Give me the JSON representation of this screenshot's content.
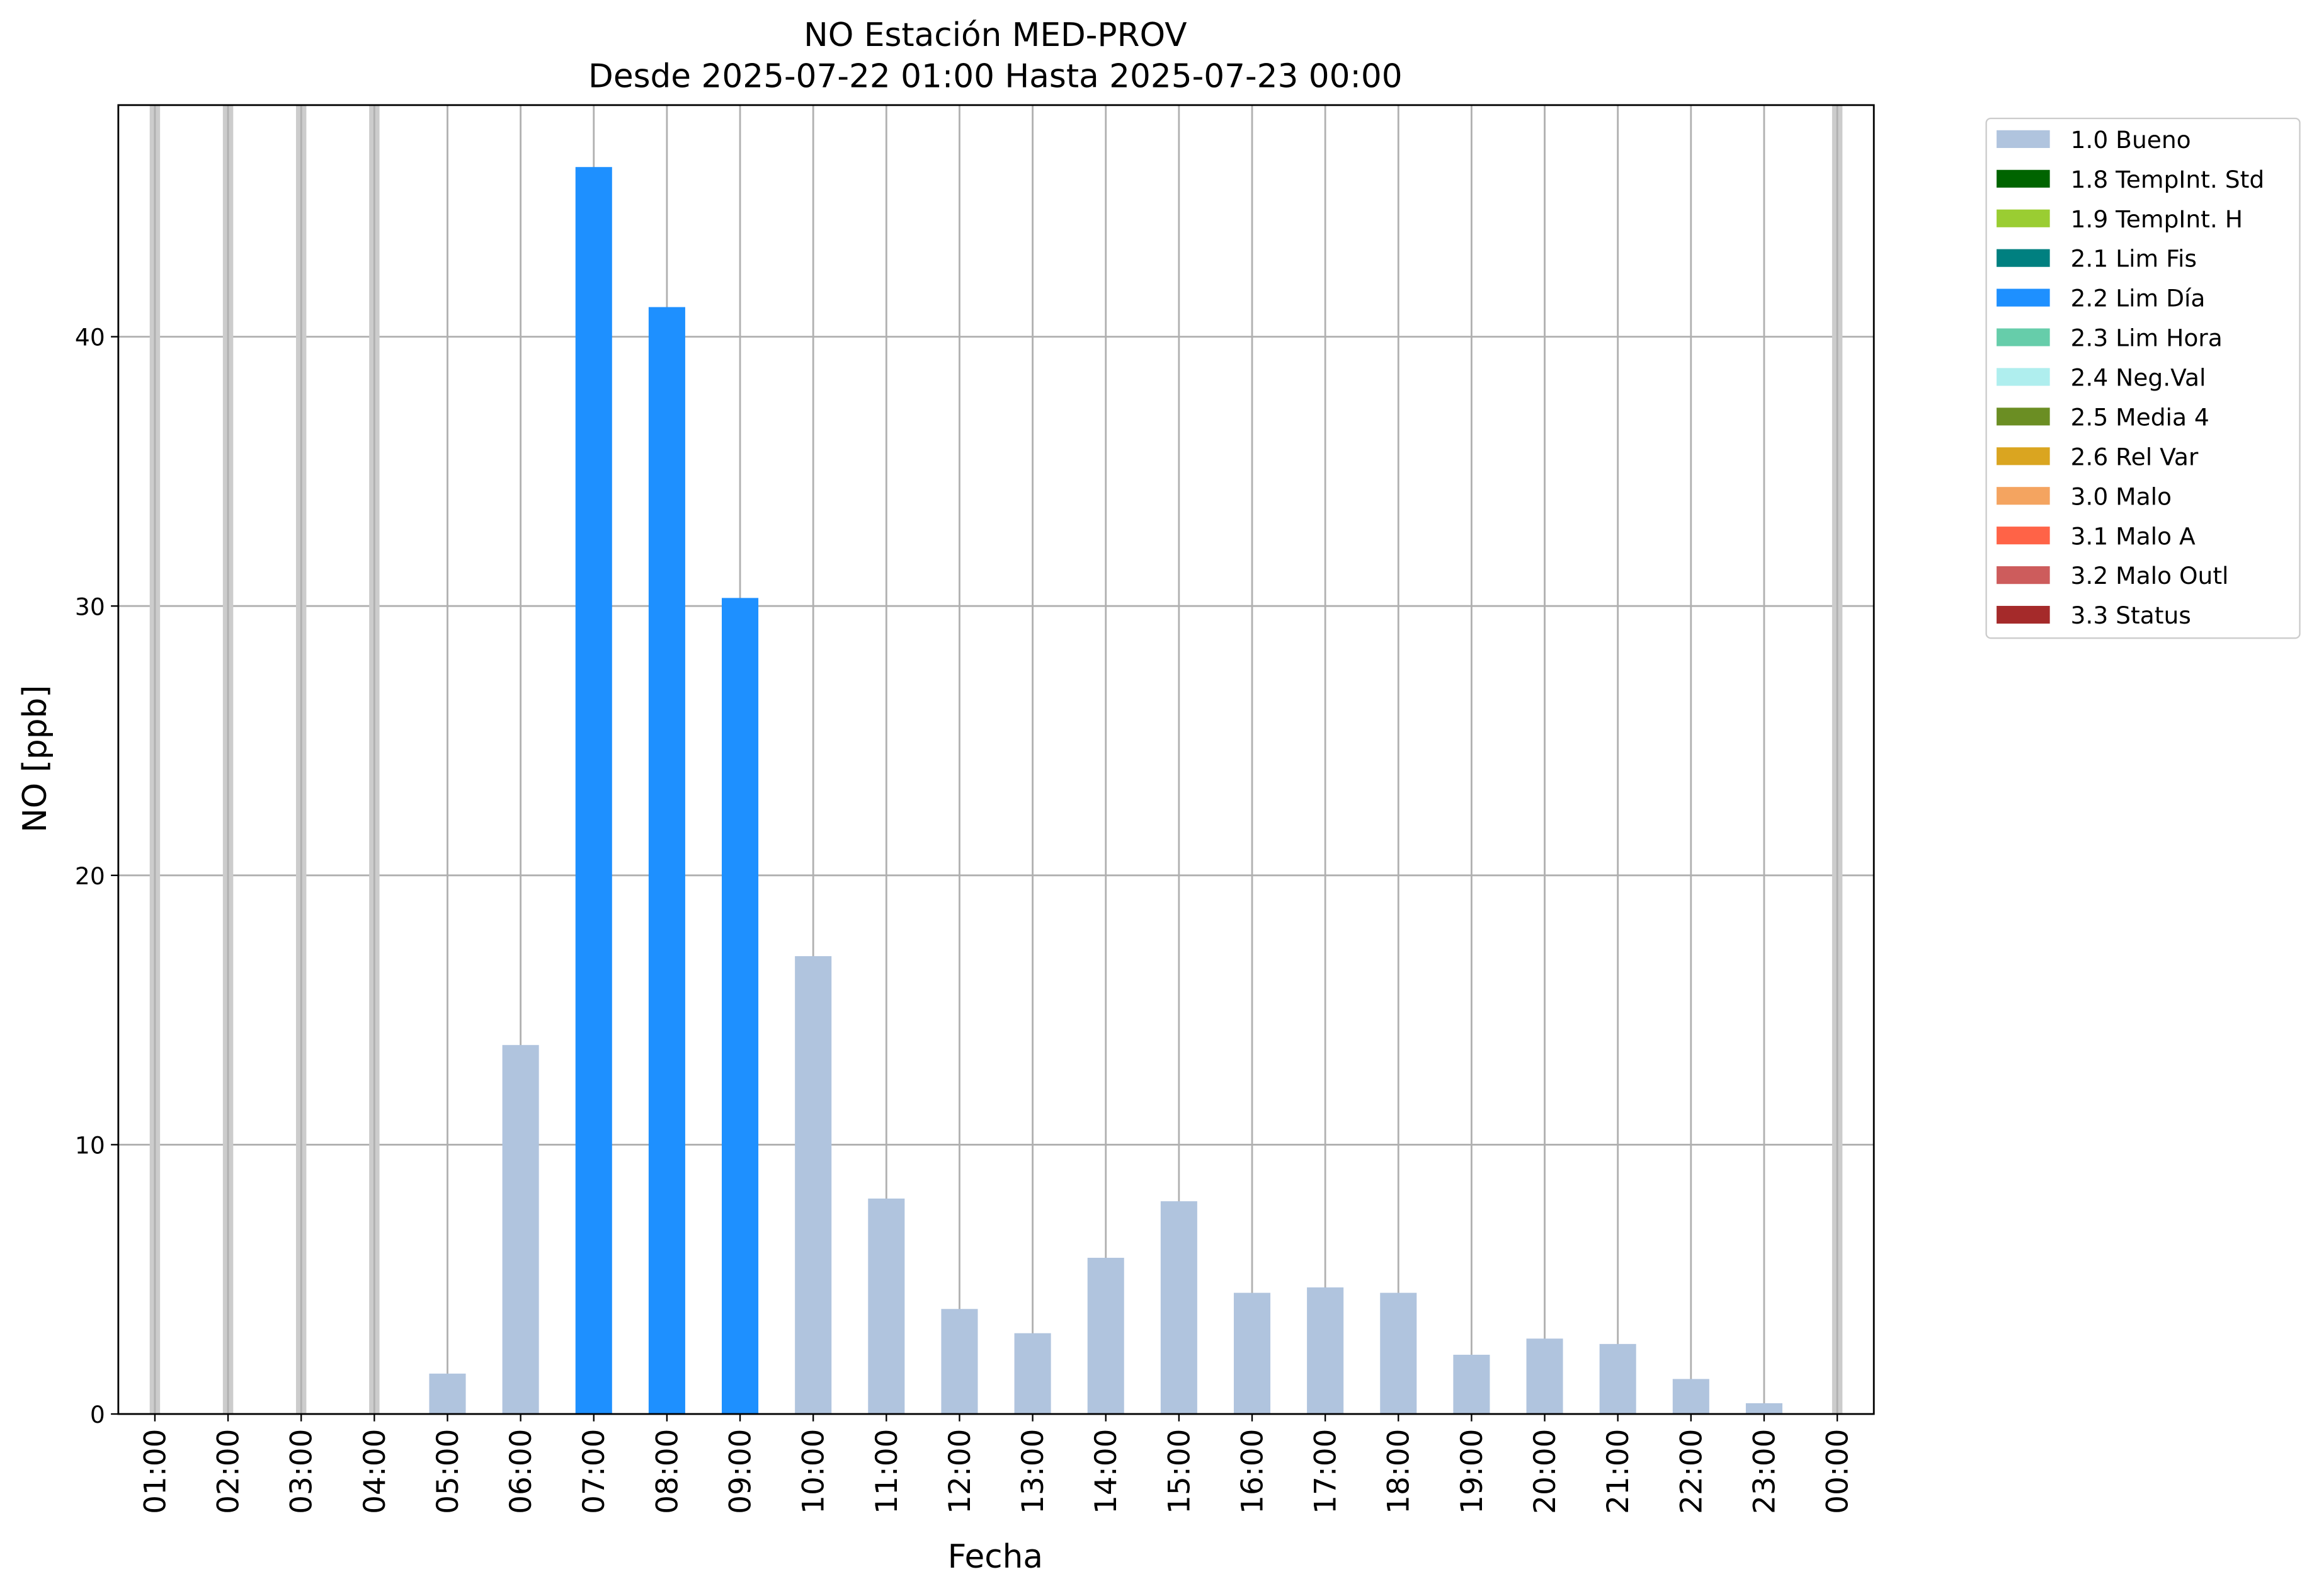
{
  "chart_data": {
    "type": "bar",
    "title": "NO Estación MED-PROV",
    "subtitle": "Desde 2025-07-22 01:00 Hasta 2025-07-23 00:00",
    "x_label": "Fecha",
    "y_label": "NO [ppb]",
    "categories": [
      "01:00",
      "02:00",
      "03:00",
      "04:00",
      "05:00",
      "06:00",
      "07:00",
      "08:00",
      "09:00",
      "10:00",
      "11:00",
      "12:00",
      "13:00",
      "14:00",
      "15:00",
      "16:00",
      "17:00",
      "18:00",
      "19:00",
      "20:00",
      "21:00",
      "22:00",
      "23:00",
      "00:00"
    ],
    "series": [
      {
        "name": "1.0 Bueno",
        "color": "#b0c4de",
        "values": [
          null,
          null,
          null,
          null,
          1.5,
          13.7,
          null,
          null,
          null,
          17.0,
          8.0,
          3.9,
          3.0,
          5.8,
          7.9,
          4.5,
          4.7,
          4.5,
          2.2,
          2.8,
          2.6,
          1.3,
          0.4,
          null
        ]
      },
      {
        "name": "1.8 TempInt. Std",
        "color": "#006400",
        "values": [
          null,
          null,
          null,
          null,
          null,
          null,
          null,
          null,
          null,
          null,
          null,
          null,
          null,
          null,
          null,
          null,
          null,
          null,
          null,
          null,
          null,
          null,
          null,
          null
        ]
      },
      {
        "name": "1.9 TempInt. H",
        "color": "#9acd32",
        "values": [
          null,
          null,
          null,
          null,
          null,
          null,
          null,
          null,
          null,
          null,
          null,
          null,
          null,
          null,
          null,
          null,
          null,
          null,
          null,
          null,
          null,
          null,
          null,
          null
        ]
      },
      {
        "name": "2.1 Lim Fis",
        "color": "#008080",
        "values": [
          null,
          null,
          null,
          null,
          null,
          null,
          null,
          null,
          null,
          null,
          null,
          null,
          null,
          null,
          null,
          null,
          null,
          null,
          null,
          null,
          null,
          null,
          null,
          null
        ]
      },
      {
        "name": "2.2 Lim Día",
        "color": "#1e90ff",
        "values": [
          null,
          null,
          null,
          null,
          null,
          null,
          46.3,
          41.1,
          30.3,
          null,
          null,
          null,
          null,
          null,
          null,
          null,
          null,
          null,
          null,
          null,
          null,
          null,
          null,
          null
        ]
      },
      {
        "name": "2.3 Lim Hora",
        "color": "#66cdaa",
        "values": [
          null,
          null,
          null,
          null,
          null,
          null,
          null,
          null,
          null,
          null,
          null,
          null,
          null,
          null,
          null,
          null,
          null,
          null,
          null,
          null,
          null,
          null,
          null,
          null
        ]
      },
      {
        "name": "2.4 Neg.Val",
        "color": "#afeeee",
        "values": [
          null,
          null,
          null,
          null,
          null,
          null,
          null,
          null,
          null,
          null,
          null,
          null,
          null,
          null,
          null,
          null,
          null,
          null,
          null,
          null,
          null,
          null,
          null,
          null
        ]
      },
      {
        "name": "2.5 Media 4",
        "color": "#6b8e23",
        "values": [
          null,
          null,
          null,
          null,
          null,
          null,
          null,
          null,
          null,
          null,
          null,
          null,
          null,
          null,
          null,
          null,
          null,
          null,
          null,
          null,
          null,
          null,
          null,
          null
        ]
      },
      {
        "name": "2.6 Rel Var",
        "color": "#daa520",
        "values": [
          null,
          null,
          null,
          null,
          null,
          null,
          null,
          null,
          null,
          null,
          null,
          null,
          null,
          null,
          null,
          null,
          null,
          null,
          null,
          null,
          null,
          null,
          null,
          null
        ]
      },
      {
        "name": "3.0 Malo",
        "color": "#f4a460",
        "values": [
          null,
          null,
          null,
          null,
          null,
          null,
          null,
          null,
          null,
          null,
          null,
          null,
          null,
          null,
          null,
          null,
          null,
          null,
          null,
          null,
          null,
          null,
          null,
          null
        ]
      },
      {
        "name": "3.1 Malo A",
        "color": "#ff6347",
        "values": [
          null,
          null,
          null,
          null,
          null,
          null,
          null,
          null,
          null,
          null,
          null,
          null,
          null,
          null,
          null,
          null,
          null,
          null,
          null,
          null,
          null,
          null,
          null,
          null
        ]
      },
      {
        "name": "3.2 Malo Outl",
        "color": "#cd5c5c",
        "values": [
          null,
          null,
          null,
          null,
          null,
          null,
          null,
          null,
          null,
          null,
          null,
          null,
          null,
          null,
          null,
          null,
          null,
          null,
          null,
          null,
          null,
          null,
          null,
          null
        ]
      },
      {
        "name": "3.3 Status",
        "color": "#a52a2a",
        "values": [
          null,
          null,
          null,
          null,
          null,
          null,
          null,
          null,
          null,
          null,
          null,
          null,
          null,
          null,
          null,
          null,
          null,
          null,
          null,
          null,
          null,
          null,
          null,
          null
        ]
      }
    ],
    "ylim": [
      0,
      48.6
    ],
    "yticks": [
      0,
      10,
      20,
      30,
      40
    ],
    "grid": true,
    "legend": "outside-upper-right"
  }
}
